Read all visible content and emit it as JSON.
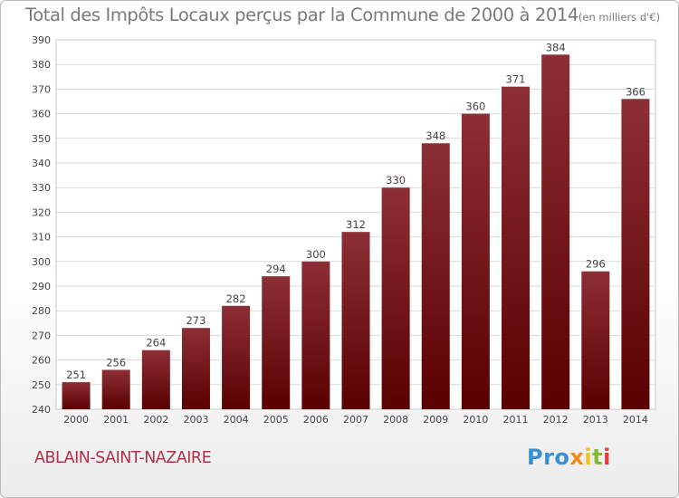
{
  "title": "Total des Impôts Locaux perçus par la Commune de 2000 à 2014",
  "title_unit": "(en milliers d'€)",
  "commune": "ABLAIN-SAINT-NAZAIRE",
  "logo": [
    "Pro",
    "x",
    "i",
    "t",
    "i"
  ],
  "colors": {
    "bar_top": "#8c2f36",
    "bar_bottom": "#5a0000",
    "grid": "#d9d9d9",
    "axis_text": "#444444"
  },
  "chart_data": {
    "type": "bar",
    "title": "Total des Impôts Locaux perçus par la Commune de 2000 à 2014",
    "xlabel": "",
    "ylabel": "",
    "categories": [
      "2000",
      "2001",
      "2002",
      "2003",
      "2004",
      "2005",
      "2006",
      "2007",
      "2008",
      "2009",
      "2010",
      "2011",
      "2012",
      "2013",
      "2014"
    ],
    "values": [
      251,
      256,
      264,
      273,
      282,
      294,
      300,
      312,
      330,
      348,
      360,
      371,
      384,
      296,
      366
    ],
    "ylim": [
      240,
      390
    ],
    "yticks": [
      240,
      250,
      260,
      270,
      280,
      290,
      300,
      310,
      320,
      330,
      340,
      350,
      360,
      370,
      380,
      390
    ],
    "grid": true,
    "data_labels": true
  }
}
